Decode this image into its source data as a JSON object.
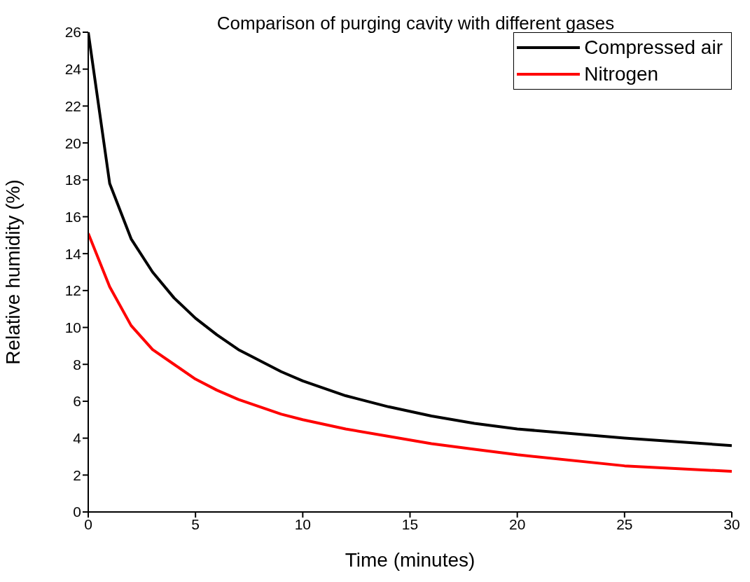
{
  "chart_data": {
    "type": "line",
    "title": "Comparison of purging cavity with different gases",
    "xlabel": "Time (minutes)",
    "ylabel": "Relative humidity (%)",
    "x": [
      0,
      1,
      2,
      3,
      4,
      5,
      6,
      7,
      8,
      9,
      10,
      12,
      14,
      16,
      18,
      20,
      25,
      30
    ],
    "series": [
      {
        "name": "Compressed air",
        "color": "#000000",
        "values": [
          26,
          17.8,
          14.8,
          13,
          11.6,
          10.5,
          9.6,
          8.8,
          8.2,
          7.6,
          7.1,
          6.3,
          5.7,
          5.2,
          4.8,
          4.5,
          4,
          3.6
        ]
      },
      {
        "name": "Nitrogen",
        "color": "#ff0000",
        "values": [
          15.1,
          12.2,
          10.1,
          8.8,
          8,
          7.2,
          6.6,
          6.1,
          5.7,
          5.3,
          5,
          4.5,
          4.1,
          3.7,
          3.4,
          3.1,
          2.5,
          2.2
        ]
      }
    ],
    "xlim": [
      0,
      30
    ],
    "xticks": [
      0,
      5,
      10,
      15,
      20,
      25,
      30
    ],
    "ylim": [
      0,
      26
    ],
    "yticks": [
      0,
      2,
      4,
      6,
      8,
      10,
      12,
      14,
      16,
      18,
      20,
      22,
      24,
      26
    ],
    "grid": false,
    "legend": "top right",
    "marker": "none",
    "line_style": "solid"
  }
}
